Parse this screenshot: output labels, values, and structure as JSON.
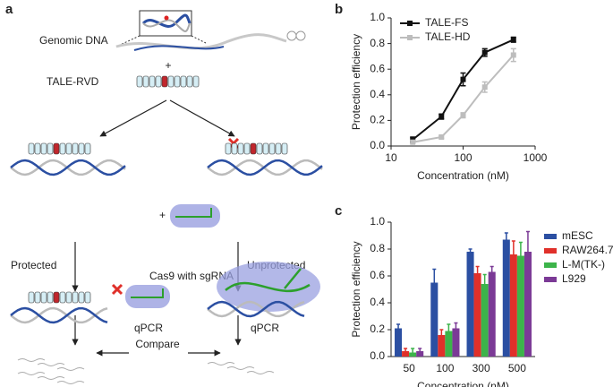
{
  "diagram": {
    "panel_a": "a",
    "panel_b": "b",
    "panel_c": "c",
    "genomic_dna": "Genomic DNA",
    "plus_1": "+",
    "tale_rvd": "TALE-RVD",
    "protected": "Protected",
    "unprotected": "Unprotected",
    "plus_2": "+",
    "cas9": "Cas9 with sgRNA",
    "qpcr_left": "qPCR",
    "qpcr_right": "qPCR",
    "compare": "Compare"
  },
  "chart_data": [
    {
      "type": "line",
      "x_label": "Concentration (nM)",
      "y_label": "Protection efficiency",
      "x": [
        20,
        50,
        100,
        200,
        500
      ],
      "xlim": [
        10,
        1000
      ],
      "xticks": [
        10,
        100,
        1000
      ],
      "log_x": true,
      "ylim": [
        0,
        1
      ],
      "yticks": [
        {
          "value": 0,
          "label": "0.0"
        },
        0.2,
        0.4,
        0.6,
        0.8,
        {
          "value": 1,
          "label": "1.0"
        }
      ],
      "legend": "top-left",
      "series": [
        {
          "name": "TALE-FS",
          "color": "#111111",
          "values": [
            0.05,
            0.23,
            0.52,
            0.73,
            0.83
          ],
          "errors": [
            0.02,
            0.02,
            0.05,
            0.03,
            0.02
          ]
        },
        {
          "name": "TALE-HD",
          "color": "#bdbdbd",
          "values": [
            0.03,
            0.07,
            0.24,
            0.46,
            0.71
          ],
          "errors": [
            0.01,
            0.01,
            0.02,
            0.04,
            0.05
          ]
        }
      ]
    },
    {
      "type": "bar",
      "x_label": "Concentration (nM)",
      "y_label": "Protection efficiency",
      "categories": [
        "50",
        "100",
        "300",
        "500"
      ],
      "ylim": [
        0,
        1
      ],
      "yticks": [
        {
          "value": 0,
          "label": "0.0"
        },
        0.2,
        0.4,
        0.6,
        0.8,
        {
          "value": 1,
          "label": "1.0"
        }
      ],
      "legend": "right",
      "series": [
        {
          "name": "mESC",
          "color": "#2b4fa2",
          "values": [
            0.21,
            0.55,
            0.78,
            0.87
          ],
          "errors": [
            0.03,
            0.1,
            0.02,
            0.05
          ]
        },
        {
          "name": "RAW264.7",
          "color": "#e0302a",
          "values": [
            0.04,
            0.16,
            0.62,
            0.76
          ],
          "errors": [
            0.02,
            0.04,
            0.05,
            0.1
          ]
        },
        {
          "name": "L-M(TK-)",
          "color": "#3cb44a",
          "values": [
            0.03,
            0.19,
            0.54,
            0.75
          ],
          "errors": [
            0.03,
            0.05,
            0.07,
            0.1
          ]
        },
        {
          "name": "L929",
          "color": "#7b3a96",
          "values": [
            0.04,
            0.21,
            0.63,
            0.78
          ],
          "errors": [
            0.02,
            0.04,
            0.04,
            0.15
          ]
        }
      ]
    }
  ]
}
